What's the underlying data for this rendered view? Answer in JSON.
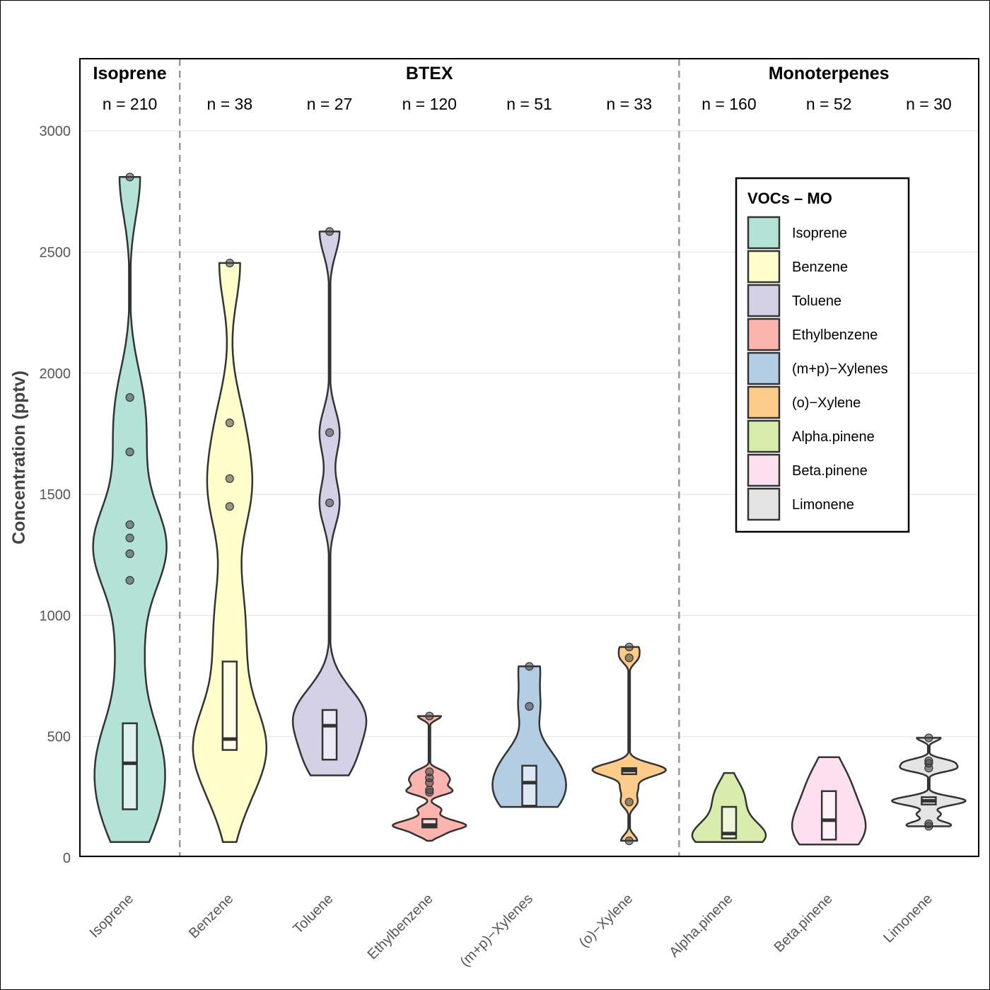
{
  "chart_data": {
    "type": "violin",
    "ylabel": "Concentration (pptv)",
    "ylim": [
      0,
      3300
    ],
    "yticks": [
      0,
      500,
      1000,
      1500,
      2000,
      2500,
      3000
    ],
    "groups": [
      {
        "label": "Isoprene",
        "span": [
          0,
          0
        ]
      },
      {
        "label": "BTEX",
        "span": [
          1,
          5
        ]
      },
      {
        "label": "Monoterpenes",
        "span": [
          6,
          8
        ]
      }
    ],
    "legend": {
      "title": "VOCs – MO",
      "position": "top-right-inside"
    },
    "series": [
      {
        "name": "Isoprene",
        "color": "#b3e2d7",
        "n_label": "n = 210",
        "min": 65,
        "q1": 200,
        "median": 390,
        "q3": 555,
        "max": 1140,
        "outliers": [
          1145,
          1255,
          1320,
          1375,
          1675,
          1900,
          2810
        ]
      },
      {
        "name": "Benzene",
        "color": "#ffffcc",
        "n_label": "n = 38",
        "min": 65,
        "q1": 445,
        "median": 490,
        "q3": 810,
        "max": 1300,
        "outliers": [
          1450,
          1565,
          1795,
          2455
        ]
      },
      {
        "name": "Toluene",
        "color": "#d4d0e6",
        "n_label": "n = 27",
        "min": 340,
        "q1": 405,
        "median": 545,
        "q3": 610,
        "max": 740,
        "outliers": [
          1465,
          1755,
          2585
        ]
      },
      {
        "name": "Ethylbenzene",
        "color": "#fbb4ae",
        "n_label": "n = 120",
        "min": 70,
        "q1": 125,
        "median": 135,
        "q3": 160,
        "max": 240,
        "outliers": [
          270,
          280,
          310,
          330,
          355,
          585
        ]
      },
      {
        "name": "(m+p)−Xylenes",
        "color": "#b3cde3",
        "n_label": "n = 51",
        "min": 210,
        "q1": 215,
        "median": 310,
        "q3": 380,
        "max": 500,
        "outliers": [
          625,
          790
        ]
      },
      {
        "name": "(o)−Xylene",
        "color": "#fdcc8a",
        "n_label": "n = 33",
        "min": 230,
        "q1": 345,
        "median": 360,
        "q3": 370,
        "max": 385,
        "outliers": [
          70,
          230,
          825,
          870
        ]
      },
      {
        "name": "Alpha.pinene",
        "color": "#d8ecab",
        "n_label": "n = 160",
        "min": 65,
        "q1": 80,
        "median": 100,
        "q3": 210,
        "max": 350,
        "outliers": []
      },
      {
        "name": "Beta.pinene",
        "color": "#fce0ef",
        "n_label": "n = 52",
        "min": 55,
        "q1": 75,
        "median": 155,
        "q3": 275,
        "max": 415,
        "outliers": []
      },
      {
        "name": "Limonene",
        "color": "#e4e4e4",
        "n_label": "n = 30",
        "min": 140,
        "q1": 220,
        "median": 235,
        "q3": 250,
        "max": 480,
        "outliers": [
          130,
          140,
          370,
          390,
          400,
          495
        ]
      }
    ]
  }
}
